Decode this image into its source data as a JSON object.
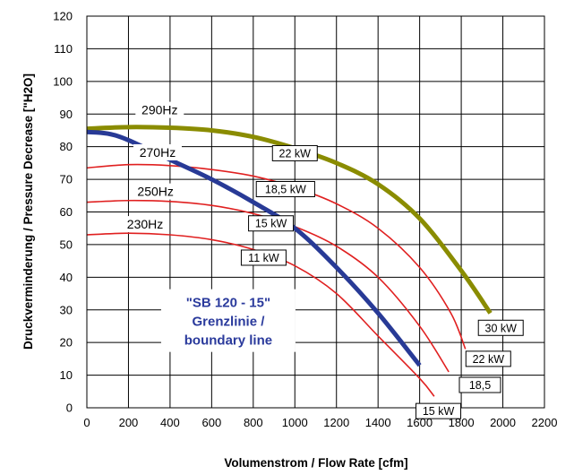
{
  "chart_data": {
    "type": "line",
    "xlabel": "Volumenstrom / Flow Rate [cfm]",
    "ylabel": "Druckverminderung / Pressure Decrease [\"H2O]",
    "xlim": [
      0,
      2200
    ],
    "ylim": [
      0,
      120
    ],
    "x_ticks": [
      "0",
      "200",
      "400",
      "600",
      "800",
      "1000",
      "1200",
      "1400",
      "1600",
      "1800",
      "2000",
      "2200"
    ],
    "y_ticks": [
      "0",
      "10",
      "20",
      "30",
      "40",
      "50",
      "60",
      "70",
      "80",
      "90",
      "100",
      "110",
      "120"
    ],
    "grid": true,
    "series": [
      {
        "name": "290Hz",
        "color": "#8a8c00",
        "x": [
          0,
          200,
          400,
          600,
          800,
          1000,
          1200,
          1400,
          1600,
          1800,
          1940
        ],
        "y": [
          85.5,
          86,
          85.8,
          85,
          83,
          79.5,
          75,
          68.5,
          58,
          42,
          29
        ]
      },
      {
        "name": "270Hz",
        "color": "#e02020",
        "x": [
          0,
          200,
          400,
          600,
          800,
          1000,
          1200,
          1400,
          1600,
          1750,
          1820
        ],
        "y": [
          73.5,
          74.5,
          74.2,
          73,
          71,
          67.5,
          62.5,
          55,
          43,
          29,
          18
        ]
      },
      {
        "name": "250Hz",
        "color": "#e02020",
        "x": [
          0,
          200,
          400,
          600,
          800,
          1000,
          1200,
          1400,
          1600,
          1740
        ],
        "y": [
          63,
          63.5,
          63.2,
          62,
          59.5,
          55.5,
          49.5,
          40,
          25,
          11
        ]
      },
      {
        "name": "230Hz",
        "color": "#e02020",
        "x": [
          0,
          200,
          400,
          600,
          800,
          1000,
          1200,
          1400,
          1600,
          1670
        ],
        "y": [
          53,
          53.5,
          53,
          51.5,
          48.5,
          43.5,
          35,
          22,
          9,
          3.5
        ]
      },
      {
        "name": "Grenzlinie / boundary line",
        "color": "#283a96",
        "x": [
          0,
          100,
          200,
          400,
          600,
          800,
          1000,
          1200,
          1400,
          1600
        ],
        "y": [
          84.5,
          84,
          82,
          76,
          70,
          63,
          55,
          43,
          29,
          13
        ]
      }
    ],
    "curve_labels": [
      {
        "text": "290Hz",
        "x": 350,
        "y": 91
      },
      {
        "text": "270Hz",
        "x": 340,
        "y": 78
      },
      {
        "text": "250Hz",
        "x": 330,
        "y": 66
      },
      {
        "text": "230Hz",
        "x": 280,
        "y": 56
      }
    ],
    "power_boxes": [
      {
        "text": "22 kW",
        "x": 1000,
        "y": 78
      },
      {
        "text": "18,5 kW",
        "x": 955,
        "y": 67
      },
      {
        "text": "15 kW",
        "x": 885,
        "y": 56.5
      },
      {
        "text": "11 kW",
        "x": 850,
        "y": 46
      },
      {
        "text": "30 kW",
        "x": 1990,
        "y": 24.5
      },
      {
        "text": "22 kW",
        "x": 1930,
        "y": 15
      },
      {
        "text": "18,5",
        "x": 1890,
        "y": 7
      },
      {
        "text": "15 kW",
        "x": 1690,
        "y": -1
      }
    ],
    "annotation": {
      "lines": [
        "\"SB 120 - 15\"",
        "Grenzlinie /",
        "boundary line"
      ],
      "x": 680,
      "y": 27
    }
  }
}
